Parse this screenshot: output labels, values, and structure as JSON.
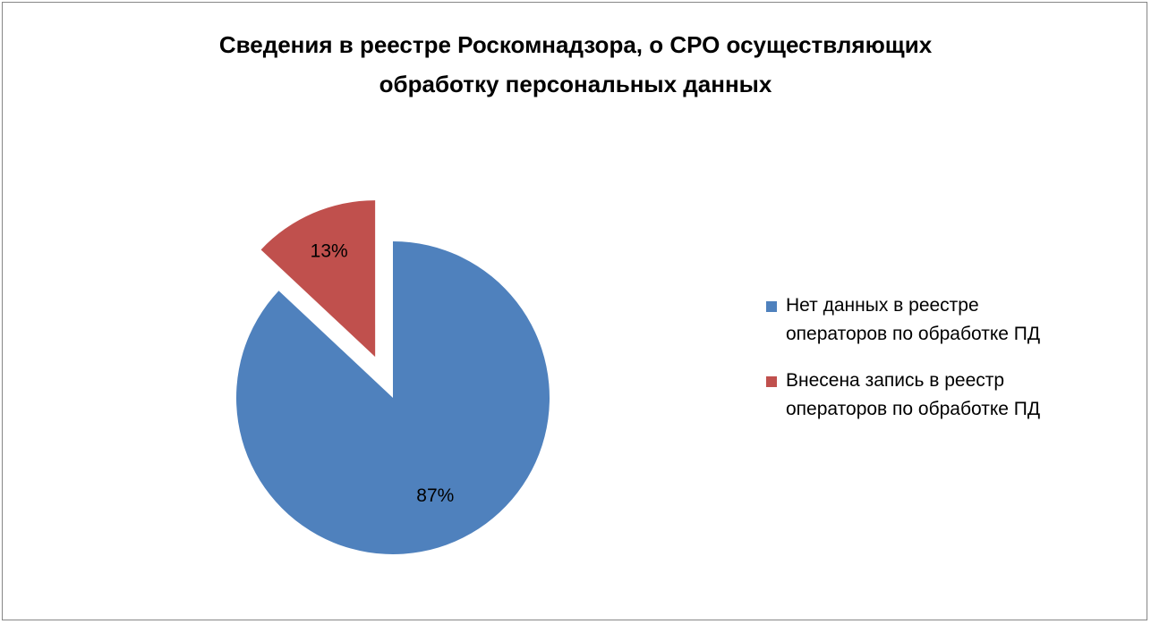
{
  "chart_data": {
    "type": "pie",
    "title_lines": [
      "Сведения в реестре Роскомнадзора, о СРО осуществляющих",
      "обработку персональных данных"
    ],
    "slices": [
      {
        "label": "Нет данных в реестре операторов по обработке ПД",
        "legend_lines": [
          "Нет данных в реестре",
          "операторов по обработке ПД"
        ],
        "value": 87,
        "data_label": "87%",
        "color": "#4F81BD",
        "exploded": false
      },
      {
        "label": "Внесена запись в реестр операторов по обработке ПД",
        "legend_lines": [
          "Внесена запись в реестр",
          "операторов по обработке ПД"
        ],
        "value": 13,
        "data_label": "13%",
        "color": "#C0504D",
        "exploded": true
      }
    ],
    "legend_position": "right"
  }
}
